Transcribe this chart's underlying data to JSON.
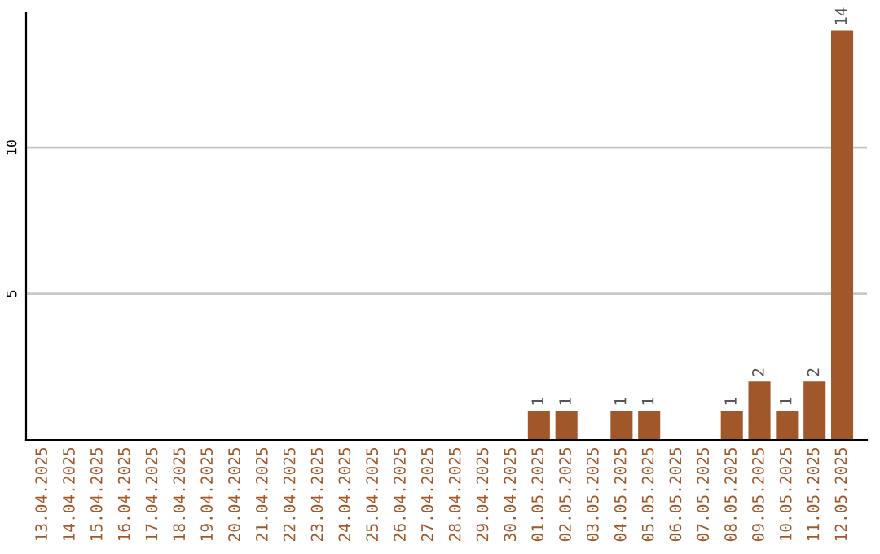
{
  "chart_data": {
    "type": "bar",
    "categories": [
      "13.04.2025",
      "14.04.2025",
      "15.04.2025",
      "16.04.2025",
      "17.04.2025",
      "18.04.2025",
      "19.04.2025",
      "20.04.2025",
      "21.04.2025",
      "22.04.2025",
      "23.04.2025",
      "24.04.2025",
      "25.04.2025",
      "26.04.2025",
      "27.04.2025",
      "28.04.2025",
      "29.04.2025",
      "30.04.2025",
      "01.05.2025",
      "02.05.2025",
      "03.05.2025",
      "04.05.2025",
      "05.05.2025",
      "06.05.2025",
      "07.05.2025",
      "08.05.2025",
      "09.05.2025",
      "10.05.2025",
      "11.05.2025",
      "12.05.2025"
    ],
    "values": [
      0,
      0,
      0,
      0,
      0,
      0,
      0,
      0,
      0,
      0,
      0,
      0,
      0,
      0,
      0,
      0,
      0,
      0,
      1,
      1,
      0,
      1,
      1,
      0,
      0,
      1,
      2,
      1,
      2,
      14
    ],
    "value_labels": [
      null,
      null,
      null,
      null,
      null,
      null,
      null,
      null,
      null,
      null,
      null,
      null,
      null,
      null,
      null,
      null,
      null,
      null,
      "1",
      "1",
      null,
      "1",
      "1",
      null,
      null,
      "1",
      "2",
      "1",
      "2",
      "14"
    ],
    "color": "#a0572a",
    "ylim": [
      0,
      14.6
    ],
    "yticks": [
      5,
      10
    ],
    "grid": "y"
  }
}
